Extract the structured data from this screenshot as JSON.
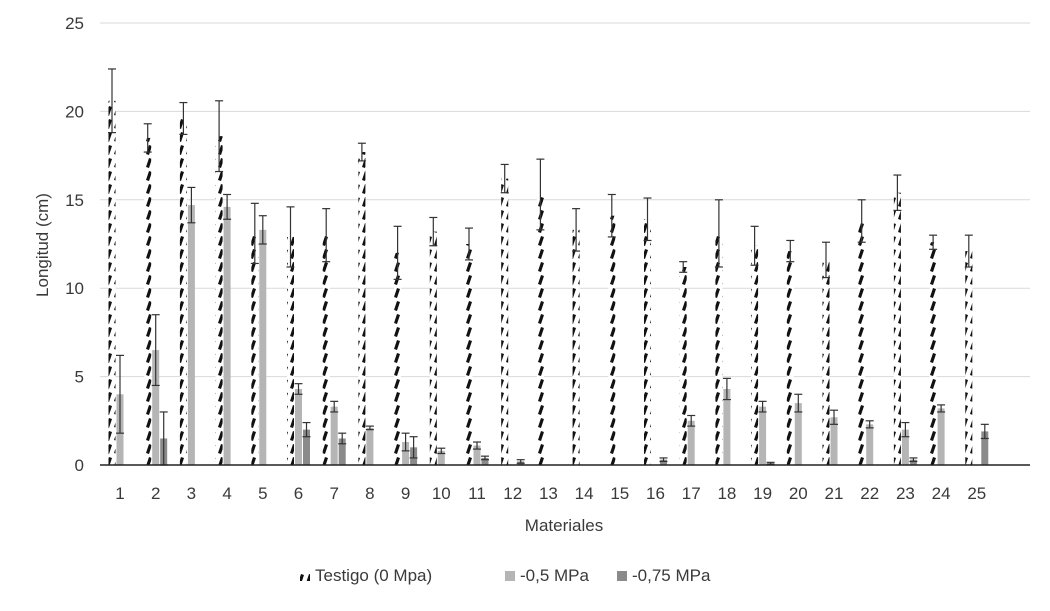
{
  "chart_data": {
    "type": "bar",
    "xlabel": "Materiales",
    "ylabel": "Longitud (cm)",
    "ylim": [
      0,
      25
    ],
    "yticks": [
      "0",
      "5",
      "10",
      "15",
      "20",
      "25"
    ],
    "grid": true,
    "legend_position": "bottom",
    "categories": [
      "1",
      "2",
      "3",
      "4",
      "5",
      "6",
      "7",
      "8",
      "9",
      "10",
      "11",
      "12",
      "13",
      "14",
      "15",
      "16",
      "17",
      "18",
      "19",
      "20",
      "21",
      "22",
      "23",
      "24",
      "25"
    ],
    "series": [
      {
        "name": "Testigo (0 Mpa)",
        "color": "#111111",
        "pattern": "diagonal-dashes",
        "values": [
          20.6,
          18.5,
          19.6,
          18.6,
          13.1,
          12.9,
          13.0,
          17.7,
          12.0,
          13.2,
          12.5,
          16.2,
          15.3,
          13.3,
          14.1,
          13.9,
          11.2,
          13.1,
          12.4,
          12.1,
          11.6,
          13.8,
          15.4,
          12.6,
          12.1
        ],
        "errors": [
          1.8,
          0.8,
          0.9,
          2.0,
          1.7,
          1.7,
          1.5,
          0.5,
          1.5,
          0.8,
          0.9,
          0.8,
          2.0,
          1.2,
          1.2,
          1.2,
          0.3,
          1.9,
          1.1,
          0.6,
          1.0,
          1.2,
          1.0,
          0.4,
          0.9
        ]
      },
      {
        "name": "-0,5 MPa",
        "color": "#b5b5b5",
        "values": [
          4.0,
          6.5,
          14.7,
          14.6,
          13.3,
          4.3,
          3.3,
          2.1,
          1.3,
          0.8,
          1.1,
          0.0,
          0.0,
          0.0,
          0.0,
          0.0,
          2.5,
          4.3,
          3.3,
          3.5,
          2.7,
          2.3,
          2.0,
          3.2,
          0.0
        ],
        "errors": [
          2.2,
          2.0,
          1.0,
          0.7,
          0.8,
          0.3,
          0.3,
          0.1,
          0.5,
          0.15,
          0.2,
          0.0,
          0.0,
          0.0,
          0.0,
          0.0,
          0.3,
          0.6,
          0.3,
          0.5,
          0.4,
          0.2,
          0.4,
          0.2,
          0.0
        ]
      },
      {
        "name": "-0,75 MPa",
        "color": "#8a8a8a",
        "values": [
          0.0,
          1.5,
          0.0,
          0.0,
          0.0,
          2.0,
          1.5,
          0.0,
          1.0,
          0.0,
          0.4,
          0.2,
          0.0,
          0.0,
          0.0,
          0.3,
          0.0,
          0.0,
          0.1,
          0.0,
          0.0,
          0.0,
          0.3,
          0.0,
          1.9
        ],
        "errors": [
          0.0,
          1.5,
          0.0,
          0.0,
          0.0,
          0.4,
          0.3,
          0.0,
          0.6,
          0.0,
          0.1,
          0.1,
          0.0,
          0.0,
          0.0,
          0.1,
          0.0,
          0.0,
          0.05,
          0.0,
          0.0,
          0.0,
          0.1,
          0.0,
          0.4
        ]
      }
    ]
  }
}
